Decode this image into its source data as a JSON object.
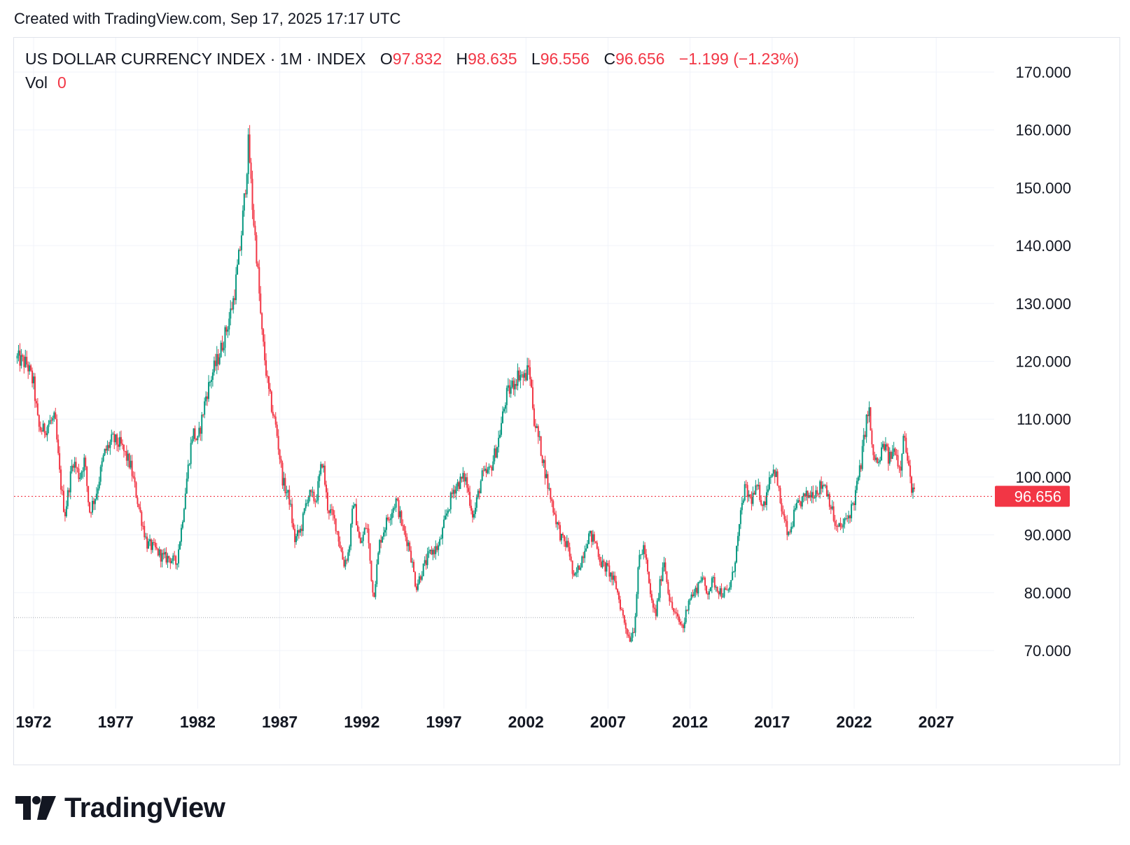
{
  "header": {
    "created_text": "Created with TradingView.com, Sep 17, 2025 17:17 UTC"
  },
  "legend": {
    "symbol": "US DOLLAR CURRENCY INDEX · 1M · INDEX",
    "o_label": "O",
    "o_value": "97.832",
    "h_label": "H",
    "h_value": "98.635",
    "l_label": "L",
    "l_value": "96.556",
    "c_label": "C",
    "c_value": "96.656",
    "change": "−1.199 (−1.23%)",
    "vol_label": "Vol",
    "vol_value": "0"
  },
  "brand": {
    "name": "TradingView",
    "icon": "tradingview-logo-icon"
  },
  "colors": {
    "up": "#089981",
    "down": "#f23645",
    "grid": "#f0f3fa",
    "text": "#131722",
    "price_line": "#f23645"
  },
  "chart_data": {
    "type": "candlestick",
    "interval": "1M",
    "x_ticks": [
      "1972",
      "1977",
      "1982",
      "1987",
      "1992",
      "1997",
      "2002",
      "2007",
      "2012",
      "2017",
      "2022",
      "2027"
    ],
    "y_ticks": [
      "70.000",
      "80.000",
      "90.000",
      "100.000",
      "110.000",
      "120.000",
      "130.000",
      "140.000",
      "150.000",
      "160.000",
      "170.000"
    ],
    "ylim": [
      60,
      171
    ],
    "xlim": [
      1971.0,
      2030.0
    ],
    "last_price": 96.656,
    "last_price_label": "96.656",
    "secondary_line": 75.7,
    "grid": true,
    "series_key_points": [
      {
        "t": 1971.0,
        "v": 120.5
      },
      {
        "t": 1971.6,
        "v": 119.5
      },
      {
        "t": 1972.0,
        "v": 116.0
      },
      {
        "t": 1972.3,
        "v": 108.5
      },
      {
        "t": 1972.6,
        "v": 108.0
      },
      {
        "t": 1973.0,
        "v": 109.5
      },
      {
        "t": 1973.3,
        "v": 110.0
      },
      {
        "t": 1973.6,
        "v": 100.0
      },
      {
        "t": 1973.9,
        "v": 93.5
      },
      {
        "t": 1974.4,
        "v": 103.0
      },
      {
        "t": 1974.8,
        "v": 100.0
      },
      {
        "t": 1975.1,
        "v": 103.0
      },
      {
        "t": 1975.4,
        "v": 94.0
      },
      {
        "t": 1975.8,
        "v": 97.0
      },
      {
        "t": 1976.3,
        "v": 104.0
      },
      {
        "t": 1976.8,
        "v": 106.5
      },
      {
        "t": 1977.3,
        "v": 105.5
      },
      {
        "t": 1977.9,
        "v": 102.0
      },
      {
        "t": 1978.4,
        "v": 95.0
      },
      {
        "t": 1978.9,
        "v": 88.5
      },
      {
        "t": 1979.4,
        "v": 87.5
      },
      {
        "t": 1979.9,
        "v": 86.0
      },
      {
        "t": 1980.3,
        "v": 86.0
      },
      {
        "t": 1980.7,
        "v": 85.0
      },
      {
        "t": 1981.0,
        "v": 91.0
      },
      {
        "t": 1981.3,
        "v": 99.0
      },
      {
        "t": 1981.7,
        "v": 108.0
      },
      {
        "t": 1982.0,
        "v": 106.0
      },
      {
        "t": 1982.5,
        "v": 114.0
      },
      {
        "t": 1982.9,
        "v": 118.0
      },
      {
        "t": 1983.3,
        "v": 121.0
      },
      {
        "t": 1983.8,
        "v": 126.0
      },
      {
        "t": 1984.2,
        "v": 131.0
      },
      {
        "t": 1984.6,
        "v": 140.0
      },
      {
        "t": 1984.9,
        "v": 150.0
      },
      {
        "t": 1985.1,
        "v": 158.0
      },
      {
        "t": 1985.3,
        "v": 148.0
      },
      {
        "t": 1985.6,
        "v": 138.0
      },
      {
        "t": 1985.9,
        "v": 125.0
      },
      {
        "t": 1986.3,
        "v": 115.0
      },
      {
        "t": 1986.8,
        "v": 108.0
      },
      {
        "t": 1987.2,
        "v": 99.0
      },
      {
        "t": 1987.6,
        "v": 96.0
      },
      {
        "t": 1987.9,
        "v": 89.0
      },
      {
        "t": 1988.3,
        "v": 91.0
      },
      {
        "t": 1988.7,
        "v": 97.0
      },
      {
        "t": 1989.2,
        "v": 96.0
      },
      {
        "t": 1989.6,
        "v": 103.0
      },
      {
        "t": 1989.9,
        "v": 95.0
      },
      {
        "t": 1990.4,
        "v": 92.0
      },
      {
        "t": 1990.9,
        "v": 85.0
      },
      {
        "t": 1991.2,
        "v": 87.0
      },
      {
        "t": 1991.5,
        "v": 96.0
      },
      {
        "t": 1991.9,
        "v": 88.0
      },
      {
        "t": 1992.3,
        "v": 92.0
      },
      {
        "t": 1992.7,
        "v": 79.0
      },
      {
        "t": 1993.1,
        "v": 89.0
      },
      {
        "t": 1993.6,
        "v": 93.0
      },
      {
        "t": 1994.1,
        "v": 96.0
      },
      {
        "t": 1994.5,
        "v": 91.0
      },
      {
        "t": 1994.9,
        "v": 88.0
      },
      {
        "t": 1995.3,
        "v": 81.0
      },
      {
        "t": 1995.7,
        "v": 84.0
      },
      {
        "t": 1996.2,
        "v": 87.0
      },
      {
        "t": 1996.7,
        "v": 88.0
      },
      {
        "t": 1997.2,
        "v": 94.0
      },
      {
        "t": 1997.6,
        "v": 98.0
      },
      {
        "t": 1997.9,
        "v": 99.0
      },
      {
        "t": 1998.3,
        "v": 100.0
      },
      {
        "t": 1998.8,
        "v": 93.0
      },
      {
        "t": 1999.3,
        "v": 100.0
      },
      {
        "t": 1999.8,
        "v": 101.0
      },
      {
        "t": 2000.3,
        "v": 106.0
      },
      {
        "t": 2000.8,
        "v": 114.0
      },
      {
        "t": 2001.2,
        "v": 116.0
      },
      {
        "t": 2001.6,
        "v": 118.0
      },
      {
        "t": 2001.9,
        "v": 117.0
      },
      {
        "t": 2002.2,
        "v": 119.0
      },
      {
        "t": 2002.5,
        "v": 110.0
      },
      {
        "t": 2002.9,
        "v": 105.0
      },
      {
        "t": 2003.3,
        "v": 99.0
      },
      {
        "t": 2003.8,
        "v": 93.0
      },
      {
        "t": 2004.2,
        "v": 89.0
      },
      {
        "t": 2004.6,
        "v": 88.0
      },
      {
        "t": 2004.9,
        "v": 82.0
      },
      {
        "t": 2005.3,
        "v": 85.0
      },
      {
        "t": 2005.8,
        "v": 90.0
      },
      {
        "t": 2006.2,
        "v": 89.0
      },
      {
        "t": 2006.6,
        "v": 85.0
      },
      {
        "t": 2007.0,
        "v": 84.0
      },
      {
        "t": 2007.5,
        "v": 81.0
      },
      {
        "t": 2007.9,
        "v": 76.0
      },
      {
        "t": 2008.3,
        "v": 72.0
      },
      {
        "t": 2008.6,
        "v": 74.0
      },
      {
        "t": 2008.9,
        "v": 86.0
      },
      {
        "t": 2009.2,
        "v": 88.0
      },
      {
        "t": 2009.6,
        "v": 79.0
      },
      {
        "t": 2009.9,
        "v": 76.0
      },
      {
        "t": 2010.4,
        "v": 86.0
      },
      {
        "t": 2010.8,
        "v": 78.0
      },
      {
        "t": 2011.3,
        "v": 75.0
      },
      {
        "t": 2011.6,
        "v": 74.0
      },
      {
        "t": 2011.9,
        "v": 79.0
      },
      {
        "t": 2012.3,
        "v": 80.0
      },
      {
        "t": 2012.7,
        "v": 83.0
      },
      {
        "t": 2013.0,
        "v": 80.0
      },
      {
        "t": 2013.4,
        "v": 82.0
      },
      {
        "t": 2013.9,
        "v": 80.0
      },
      {
        "t": 2014.3,
        "v": 80.0
      },
      {
        "t": 2014.6,
        "v": 83.0
      },
      {
        "t": 2014.9,
        "v": 89.0
      },
      {
        "t": 2015.3,
        "v": 98.0
      },
      {
        "t": 2015.7,
        "v": 96.0
      },
      {
        "t": 2016.1,
        "v": 98.0
      },
      {
        "t": 2016.5,
        "v": 95.0
      },
      {
        "t": 2016.9,
        "v": 101.0
      },
      {
        "t": 2017.2,
        "v": 101.0
      },
      {
        "t": 2017.6,
        "v": 94.0
      },
      {
        "t": 2018.0,
        "v": 89.5
      },
      {
        "t": 2018.4,
        "v": 94.0
      },
      {
        "t": 2018.8,
        "v": 96.0
      },
      {
        "t": 2019.3,
        "v": 97.0
      },
      {
        "t": 2019.8,
        "v": 98.0
      },
      {
        "t": 2020.2,
        "v": 99.0
      },
      {
        "t": 2020.5,
        "v": 96.0
      },
      {
        "t": 2020.9,
        "v": 91.0
      },
      {
        "t": 2021.3,
        "v": 91.5
      },
      {
        "t": 2021.7,
        "v": 93.5
      },
      {
        "t": 2022.0,
        "v": 96.0
      },
      {
        "t": 2022.4,
        "v": 102.0
      },
      {
        "t": 2022.7,
        "v": 109.0
      },
      {
        "t": 2022.9,
        "v": 112.0
      },
      {
        "t": 2023.1,
        "v": 104.0
      },
      {
        "t": 2023.5,
        "v": 102.0
      },
      {
        "t": 2023.8,
        "v": 106.0
      },
      {
        "t": 2024.1,
        "v": 103.0
      },
      {
        "t": 2024.5,
        "v": 105.0
      },
      {
        "t": 2024.8,
        "v": 101.0
      },
      {
        "t": 2025.0,
        "v": 108.0
      },
      {
        "t": 2025.2,
        "v": 104.0
      },
      {
        "t": 2025.4,
        "v": 99.5
      },
      {
        "t": 2025.6,
        "v": 97.5
      },
      {
        "t": 2025.7,
        "v": 96.7
      }
    ]
  }
}
